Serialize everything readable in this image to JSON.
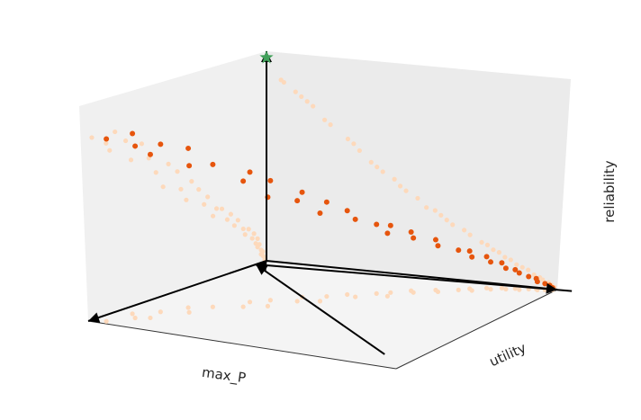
{
  "chart_data": {
    "type": "scatter",
    "projection": "3d",
    "title": "",
    "xlabel": "max_P",
    "ylabel": "utility",
    "zlabel": "reliability",
    "grid": false,
    "legend": "none",
    "ranges": {
      "x": [
        0,
        1
      ],
      "y": [
        0,
        1
      ],
      "z": [
        0,
        1
      ]
    },
    "colors": {
      "background": "#ffffff",
      "pane_left": "#f0f0f0",
      "pane_back": "#ebebeb",
      "pane_floor": "#f4f4f4",
      "highlight": "#e6550d",
      "projection": "#fdd9bb",
      "marker": "#41a05a",
      "arrow": "#000000"
    },
    "markers": [
      {
        "symbol": "star",
        "x": 0.0,
        "y": 0.0,
        "z": 0.97
      }
    ],
    "arrows": [
      {
        "from": [
          0,
          0,
          0
        ],
        "to": [
          0,
          0,
          1.0
        ]
      },
      {
        "from": [
          0,
          0,
          0
        ],
        "to": [
          0,
          1.0,
          0
        ]
      },
      {
        "from": [
          0,
          0,
          0
        ],
        "to": [
          1.0,
          0,
          0
        ]
      },
      {
        "from": [
          1.05,
          1.05,
          0
        ],
        "to": [
          0.06,
          0,
          0
        ]
      },
      {
        "from": [
          0.0,
          1.05,
          0
        ],
        "to": [
          0.06,
          0,
          0
        ]
      }
    ],
    "series": [
      {
        "role": "points",
        "color": "#e6550d",
        "x": [
          0.98,
          0.9,
          0.85,
          0.88,
          0.79,
          0.76,
          0.7,
          0.66,
          0.62,
          0.55,
          0.58,
          0.5,
          0.48,
          0.42,
          0.45,
          0.38,
          0.35,
          0.33,
          0.28,
          0.3,
          0.25,
          0.22,
          0.2,
          0.18,
          0.16,
          0.13,
          0.12,
          0.1,
          0.08,
          0.07,
          0.06,
          0.05,
          0.05,
          0.04,
          0.03,
          0.03,
          0.02,
          0.02,
          0.01,
          0.01
        ],
        "y": [
          0.05,
          0.1,
          0.06,
          0.14,
          0.12,
          0.2,
          0.16,
          0.22,
          0.3,
          0.28,
          0.36,
          0.32,
          0.4,
          0.38,
          0.46,
          0.44,
          0.52,
          0.48,
          0.55,
          0.6,
          0.58,
          0.64,
          0.62,
          0.7,
          0.68,
          0.74,
          0.78,
          0.76,
          0.82,
          0.8,
          0.86,
          0.84,
          0.9,
          0.88,
          0.92,
          0.95,
          0.94,
          0.97,
          0.98,
          0.99
        ],
        "z": [
          0.87,
          0.82,
          0.86,
          0.78,
          0.8,
          0.7,
          0.76,
          0.68,
          0.6,
          0.62,
          0.52,
          0.57,
          0.48,
          0.5,
          0.42,
          0.45,
          0.37,
          0.4,
          0.33,
          0.3,
          0.32,
          0.26,
          0.28,
          0.22,
          0.24,
          0.19,
          0.16,
          0.18,
          0.13,
          0.15,
          0.1,
          0.12,
          0.08,
          0.09,
          0.06,
          0.04,
          0.05,
          0.03,
          0.02,
          0.01
        ]
      }
    ]
  }
}
